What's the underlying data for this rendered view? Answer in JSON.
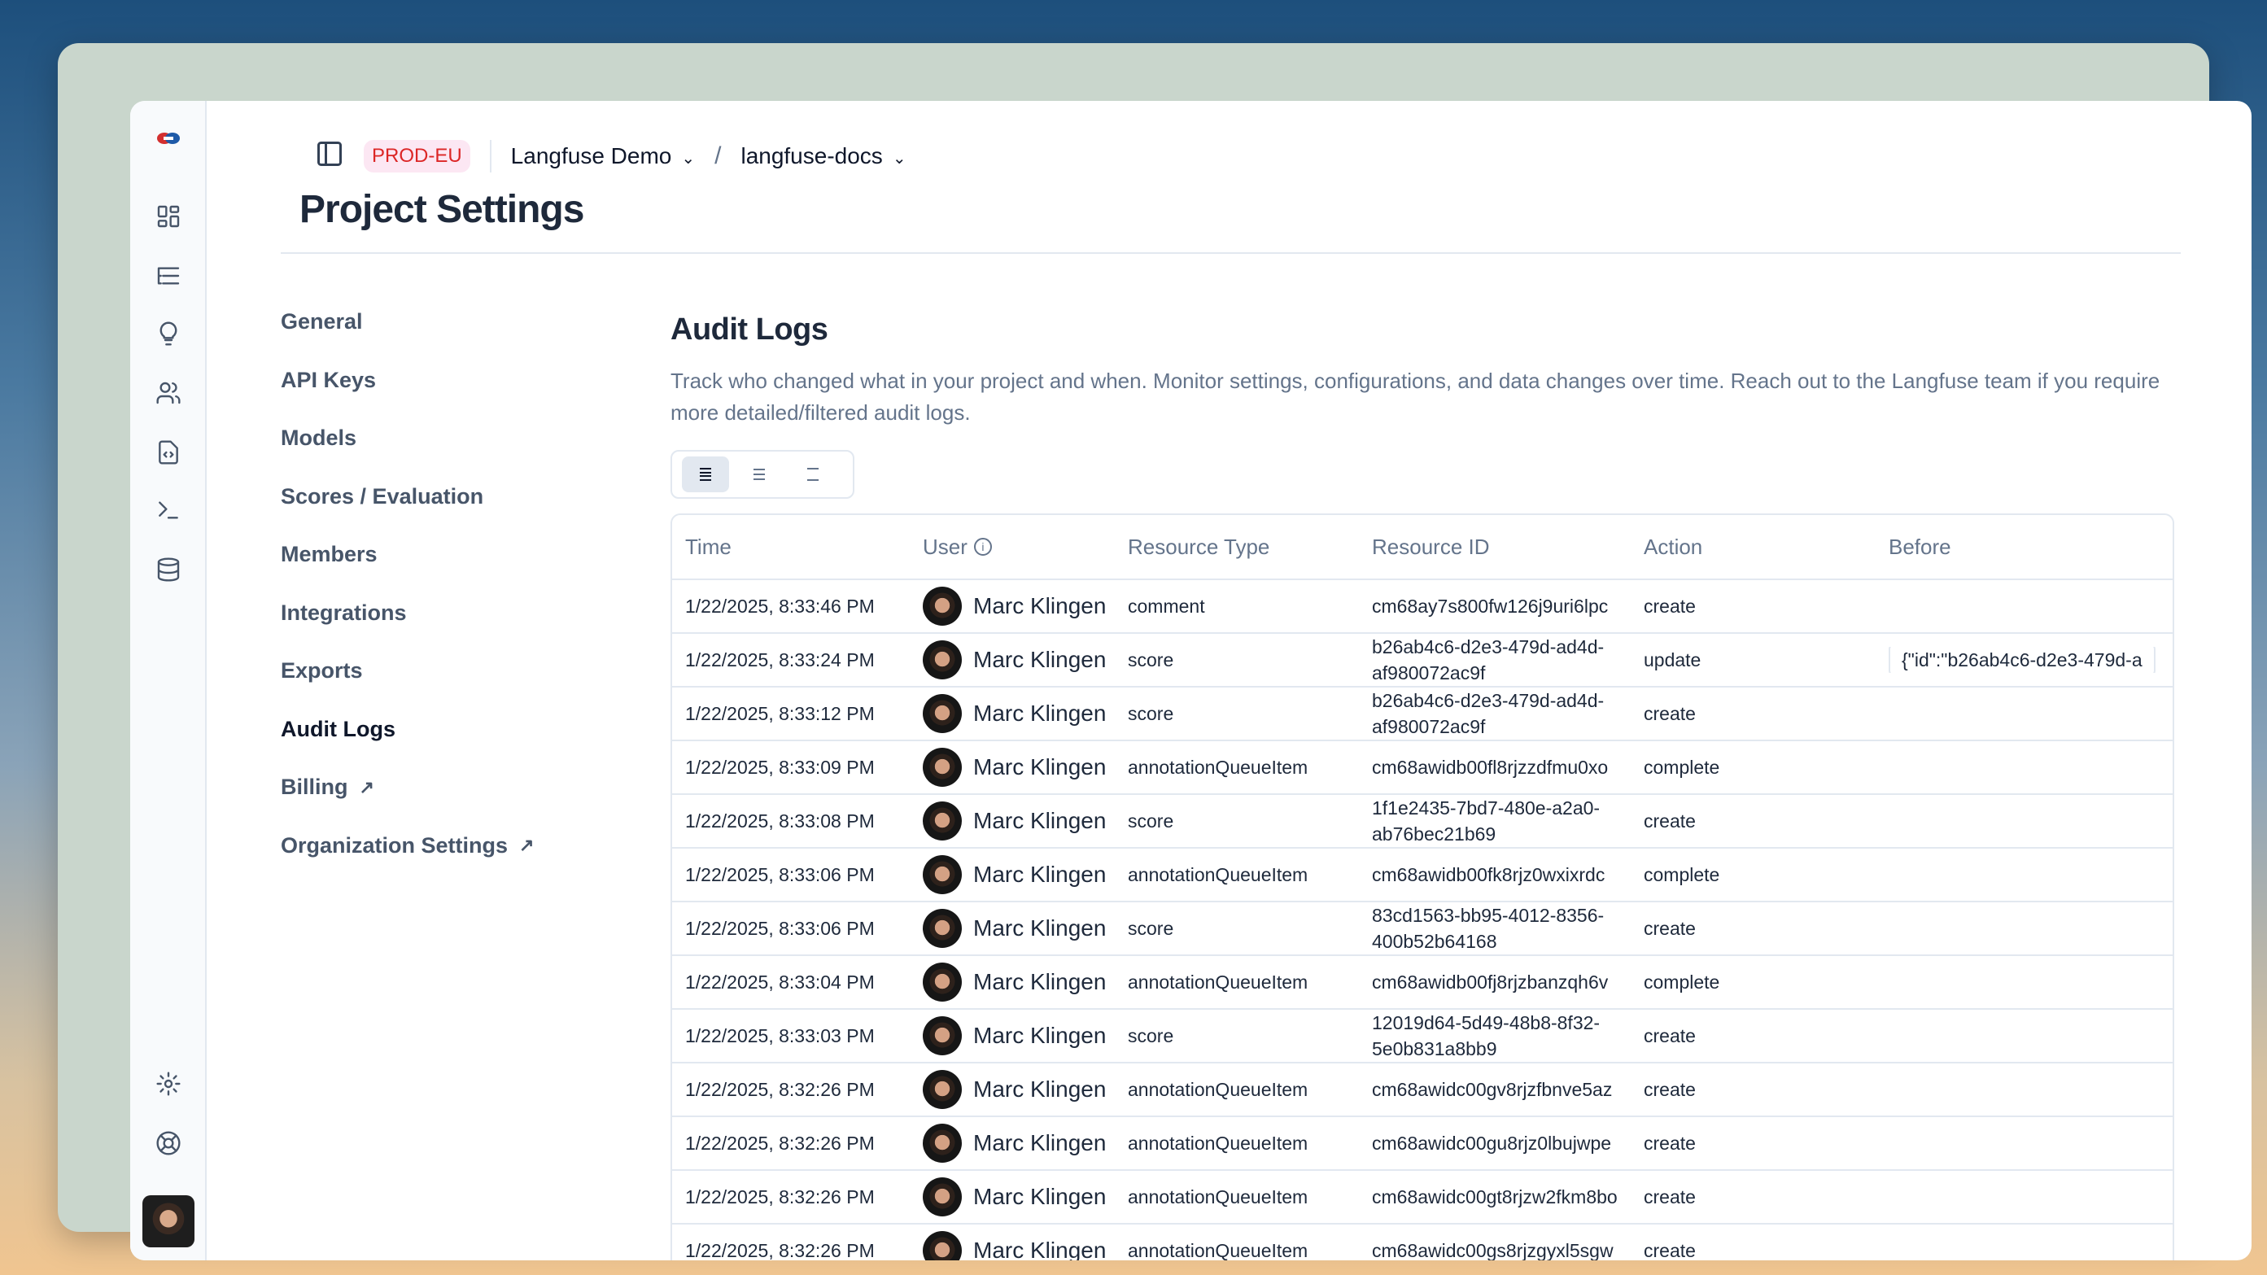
{
  "header": {
    "env_badge": "PROD-EU",
    "organization": "Langfuse Demo",
    "project": "langfuse-docs",
    "title": "Project Settings"
  },
  "nav": {
    "items": [
      {
        "label": "General"
      },
      {
        "label": "API Keys"
      },
      {
        "label": "Models"
      },
      {
        "label": "Scores / Evaluation"
      },
      {
        "label": "Members"
      },
      {
        "label": "Integrations"
      },
      {
        "label": "Exports"
      },
      {
        "label": "Audit Logs",
        "active": true
      },
      {
        "label": "Billing",
        "external": true
      },
      {
        "label": "Organization Settings",
        "external": true
      }
    ]
  },
  "audit": {
    "title": "Audit Logs",
    "description": "Track who changed what in your project and when. Monitor settings, configurations, and data changes over time. Reach out to the Langfuse team if you require more detailed/filtered audit logs.",
    "columns": [
      "Time",
      "User",
      "Resource Type",
      "Resource ID",
      "Action",
      "Before"
    ],
    "rows": [
      {
        "time": "1/22/2025, 8:33:46 PM",
        "user": "Marc Klingen",
        "type": "comment",
        "id": "cm68ay7s800fw126j9uri6lpc",
        "action": "create",
        "before": ""
      },
      {
        "time": "1/22/2025, 8:33:24 PM",
        "user": "Marc Klingen",
        "type": "score",
        "id": "b26ab4c6-d2e3-479d-ad4d-af980072ac9f",
        "action": "update",
        "before": "{\"id\":\"b26ab4c6-d2e3-479d-a"
      },
      {
        "time": "1/22/2025, 8:33:12 PM",
        "user": "Marc Klingen",
        "type": "score",
        "id": "b26ab4c6-d2e3-479d-ad4d-af980072ac9f",
        "action": "create",
        "before": ""
      },
      {
        "time": "1/22/2025, 8:33:09 PM",
        "user": "Marc Klingen",
        "type": "annotationQueueItem",
        "id": "cm68awidb00fl8rjzzdfmu0xo",
        "action": "complete",
        "before": ""
      },
      {
        "time": "1/22/2025, 8:33:08 PM",
        "user": "Marc Klingen",
        "type": "score",
        "id": "1f1e2435-7bd7-480e-a2a0-ab76bec21b69",
        "action": "create",
        "before": ""
      },
      {
        "time": "1/22/2025, 8:33:06 PM",
        "user": "Marc Klingen",
        "type": "annotationQueueItem",
        "id": "cm68awidb00fk8rjz0wxixrdc",
        "action": "complete",
        "before": ""
      },
      {
        "time": "1/22/2025, 8:33:06 PM",
        "user": "Marc Klingen",
        "type": "score",
        "id": "83cd1563-bb95-4012-8356-400b52b64168",
        "action": "create",
        "before": ""
      },
      {
        "time": "1/22/2025, 8:33:04 PM",
        "user": "Marc Klingen",
        "type": "annotationQueueItem",
        "id": "cm68awidb00fj8rjzbanzqh6v",
        "action": "complete",
        "before": ""
      },
      {
        "time": "1/22/2025, 8:33:03 PM",
        "user": "Marc Klingen",
        "type": "score",
        "id": "12019d64-5d49-48b8-8f32-5e0b831a8bb9",
        "action": "create",
        "before": ""
      },
      {
        "time": "1/22/2025, 8:32:26 PM",
        "user": "Marc Klingen",
        "type": "annotationQueueItem",
        "id": "cm68awidc00gv8rjzfbnve5az",
        "action": "create",
        "before": ""
      },
      {
        "time": "1/22/2025, 8:32:26 PM",
        "user": "Marc Klingen",
        "type": "annotationQueueItem",
        "id": "cm68awidc00gu8rjz0lbujwpe",
        "action": "create",
        "before": ""
      },
      {
        "time": "1/22/2025, 8:32:26 PM",
        "user": "Marc Klingen",
        "type": "annotationQueueItem",
        "id": "cm68awidc00gt8rjzw2fkm8bo",
        "action": "create",
        "before": ""
      },
      {
        "time": "1/22/2025, 8:32:26 PM",
        "user": "Marc Klingen",
        "type": "annotationQueueItem",
        "id": "cm68awidc00gs8rjzgyxl5sgw",
        "action": "create",
        "before": ""
      }
    ]
  },
  "icons": {
    "sidebar": [
      "langfuse-logo",
      "dashboard-icon",
      "traces-icon",
      "lightbulb-icon",
      "users-icon",
      "file-code-icon",
      "terminal-icon",
      "database-icon",
      "settings-icon",
      "support-icon"
    ],
    "density": [
      "list-dense-icon",
      "list-normal-icon",
      "list-spacious-icon"
    ]
  }
}
